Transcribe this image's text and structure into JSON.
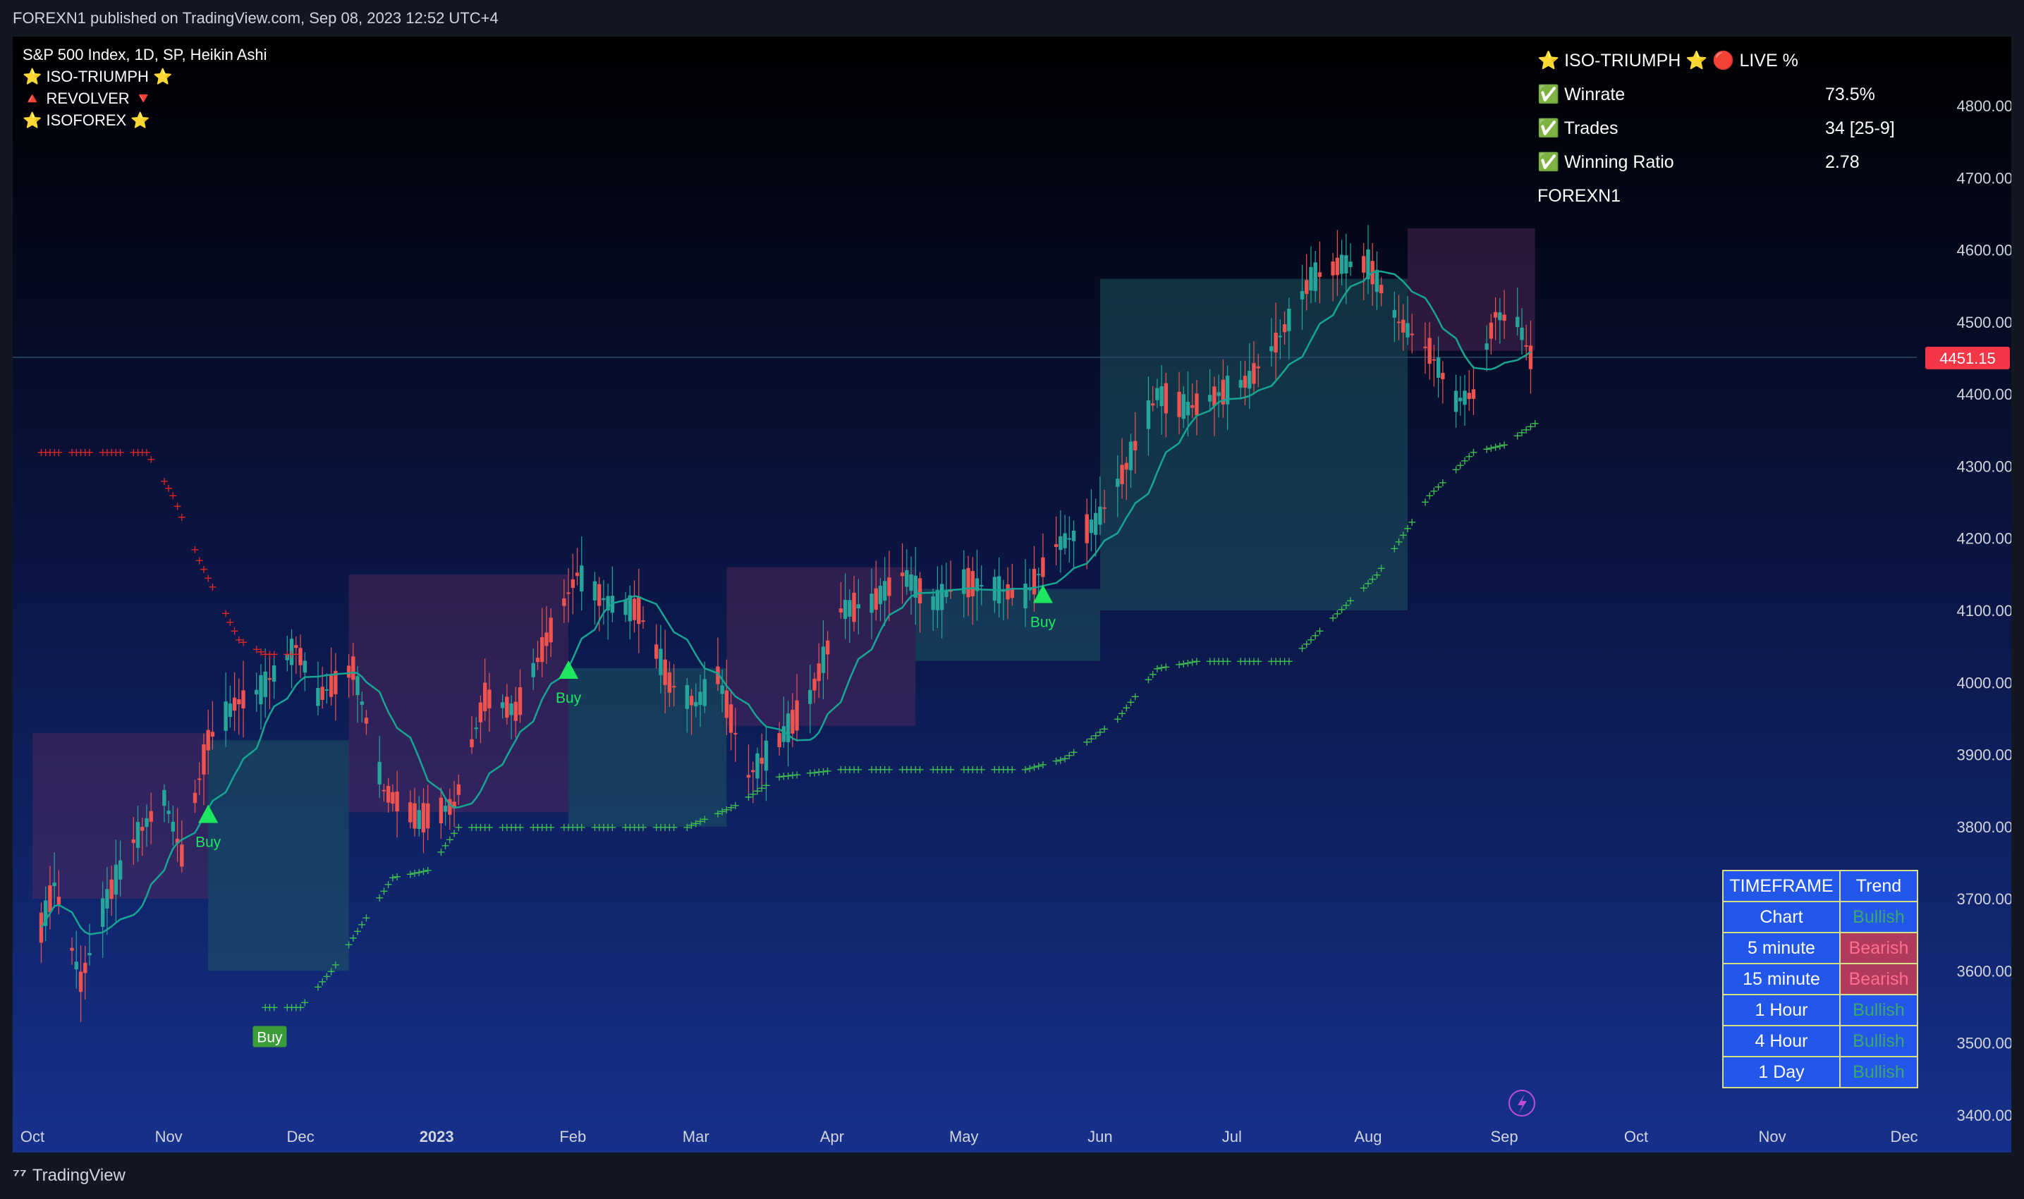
{
  "header": {
    "published_text": "FOREXN1 published on TradingView.com, Sep 08, 2023 12:52 UTC+4"
  },
  "legend": {
    "symbol": "S&P 500 Index, 1D, SP, Heikin Ashi",
    "indicators": [
      "⭐ ISO-TRIUMPH ⭐",
      "🔺 REVOLVER 🔻",
      "⭐ ISOFOREX ⭐"
    ]
  },
  "stats_panel": {
    "title": "⭐ ISO-TRIUMPH ⭐  🔴 LIVE %",
    "rows": [
      {
        "label": "✅ Winrate",
        "value": "73.5%"
      },
      {
        "label": "✅ Trades",
        "value": "34 [25-9]"
      },
      {
        "label": "✅ Winning Ratio",
        "value": "2.78"
      }
    ],
    "author": "FOREXN1"
  },
  "timeframe_table": {
    "headers": [
      "TIMEFRAME",
      "Trend"
    ],
    "rows": [
      {
        "timeframe": "Chart",
        "trend": "Bullish"
      },
      {
        "timeframe": "5 minute",
        "trend": "Bearish"
      },
      {
        "timeframe": "15 minute",
        "trend": "Bearish"
      },
      {
        "timeframe": "1 Hour",
        "trend": "Bullish"
      },
      {
        "timeframe": "4 Hour",
        "trend": "Bullish"
      },
      {
        "timeframe": "1 Day",
        "trend": "Bullish"
      }
    ]
  },
  "footer": {
    "brand": "TradingView"
  },
  "colors": {
    "bull": "#26a69a",
    "bear": "#ef5350",
    "last_price_bg": "#f23645",
    "buy_signal": "#1de760"
  },
  "chart_data": {
    "type": "candlestick",
    "title": "",
    "last_price_label": "4451.15",
    "ylim": [
      3380,
      4880
    ],
    "y_ticks": [
      4800,
      4700,
      4600,
      4500,
      4400,
      4300,
      4200,
      4100,
      4000,
      3900,
      3800,
      3700,
      3600,
      3500,
      3400
    ],
    "y_tick_labels": [
      "4800.00",
      "4700.00",
      "4600.00",
      "4500.00",
      "4400.00",
      "4300.00",
      "4200.00",
      "4100.00",
      "4000.00",
      "3900.00",
      "3800.00",
      "3700.00",
      "3600.00",
      "3500.00",
      "3400.00"
    ],
    "x_labels": [
      {
        "label": "Oct",
        "date": "2022-10-01",
        "bold": false
      },
      {
        "label": "Nov",
        "date": "2022-11-01",
        "bold": false
      },
      {
        "label": "Dec",
        "date": "2022-12-01",
        "bold": false
      },
      {
        "label": "2023",
        "date": "2023-01-01",
        "bold": true
      },
      {
        "label": "Feb",
        "date": "2023-02-01",
        "bold": false
      },
      {
        "label": "Mar",
        "date": "2023-03-01",
        "bold": false
      },
      {
        "label": "Apr",
        "date": "2023-04-01",
        "bold": false
      },
      {
        "label": "May",
        "date": "2023-05-01",
        "bold": false
      },
      {
        "label": "Jun",
        "date": "2023-06-01",
        "bold": false
      },
      {
        "label": "Jul",
        "date": "2023-07-01",
        "bold": false
      },
      {
        "label": "Aug",
        "date": "2023-08-01",
        "bold": false
      },
      {
        "label": "Sep",
        "date": "2023-09-01",
        "bold": false
      },
      {
        "label": "Oct",
        "date": "2023-10-01",
        "bold": false
      },
      {
        "label": "Nov",
        "date": "2023-11-01",
        "bold": false
      },
      {
        "label": "Dec",
        "date": "2023-12-01",
        "bold": false
      }
    ],
    "price_path": [
      [
        "2022-10-01",
        3620
      ],
      [
        "2022-10-06",
        3720
      ],
      [
        "2022-10-12",
        3585
      ],
      [
        "2022-10-18",
        3700
      ],
      [
        "2022-10-24",
        3780
      ],
      [
        "2022-10-31",
        3840
      ],
      [
        "2022-11-04",
        3760
      ],
      [
        "2022-11-10",
        3920
      ],
      [
        "2022-11-16",
        3970
      ],
      [
        "2022-11-22",
        3990
      ],
      [
        "2022-11-30",
        4050
      ],
      [
        "2022-12-05",
        3980
      ],
      [
        "2022-12-13",
        4020
      ],
      [
        "2022-12-20",
        3850
      ],
      [
        "2022-12-28",
        3810
      ],
      [
        "2023-01-05",
        3830
      ],
      [
        "2023-01-12",
        3980
      ],
      [
        "2023-01-19",
        3960
      ],
      [
        "2023-01-26",
        4060
      ],
      [
        "2023-02-02",
        4150
      ],
      [
        "2023-02-09",
        4110
      ],
      [
        "2023-02-16",
        4100
      ],
      [
        "2023-02-23",
        4000
      ],
      [
        "2023-03-01",
        3970
      ],
      [
        "2023-03-06",
        4010
      ],
      [
        "2023-03-13",
        3870
      ],
      [
        "2023-03-20",
        3920
      ],
      [
        "2023-03-27",
        3980
      ],
      [
        "2023-04-03",
        4100
      ],
      [
        "2023-04-10",
        4110
      ],
      [
        "2023-04-17",
        4150
      ],
      [
        "2023-04-24",
        4110
      ],
      [
        "2023-05-01",
        4140
      ],
      [
        "2023-05-08",
        4130
      ],
      [
        "2023-05-15",
        4120
      ],
      [
        "2023-05-22",
        4190
      ],
      [
        "2023-05-31",
        4220
      ],
      [
        "2023-06-07",
        4300
      ],
      [
        "2023-06-14",
        4400
      ],
      [
        "2023-06-21",
        4380
      ],
      [
        "2023-06-28",
        4400
      ],
      [
        "2023-07-05",
        4420
      ],
      [
        "2023-07-12",
        4480
      ],
      [
        "2023-07-19",
        4560
      ],
      [
        "2023-07-26",
        4580
      ],
      [
        "2023-08-01",
        4580
      ],
      [
        "2023-08-08",
        4500
      ],
      [
        "2023-08-15",
        4460
      ],
      [
        "2023-08-21",
        4390
      ],
      [
        "2023-08-25",
        4400
      ],
      [
        "2023-08-30",
        4510
      ],
      [
        "2023-09-04",
        4500
      ],
      [
        "2023-09-07",
        4451
      ]
    ],
    "support_trail": [
      [
        "2022-11-23",
        3550
      ],
      [
        "2022-12-01",
        3550
      ],
      [
        "2022-12-08",
        3600
      ],
      [
        "2022-12-22",
        3730
      ],
      [
        "2022-12-30",
        3740
      ],
      [
        "2023-01-06",
        3800
      ],
      [
        "2023-02-27",
        3800
      ],
      [
        "2023-03-10",
        3830
      ],
      [
        "2023-03-20",
        3870
      ],
      [
        "2023-04-03",
        3880
      ],
      [
        "2023-05-15",
        3880
      ],
      [
        "2023-05-24",
        3895
      ],
      [
        "2023-06-05",
        3950
      ],
      [
        "2023-06-14",
        4020
      ],
      [
        "2023-06-23",
        4030
      ],
      [
        "2023-07-14",
        4030
      ],
      [
        "2023-08-03",
        4150
      ],
      [
        "2023-08-15",
        4260
      ],
      [
        "2023-08-25",
        4320
      ],
      [
        "2023-09-01",
        4330
      ],
      [
        "2023-09-08",
        4360
      ]
    ],
    "resistance_trail": [
      [
        "2022-10-01",
        4320
      ],
      [
        "2022-10-27",
        4320
      ],
      [
        "2022-11-02",
        4260
      ],
      [
        "2022-11-08",
        4170
      ],
      [
        "2022-11-17",
        4060
      ],
      [
        "2022-11-23",
        4040
      ],
      [
        "2022-11-30",
        4040
      ]
    ],
    "buy_signals": [
      {
        "date": "2022-11-10",
        "price": 3815,
        "label": "Buy"
      },
      {
        "date": "2023-01-31",
        "price": 4015,
        "label": "Buy"
      },
      {
        "date": "2023-05-19",
        "price": 4120,
        "label": "Buy"
      }
    ],
    "buy_tag": {
      "date": "2022-11-24",
      "price": 3510,
      "label": "Buy"
    }
  }
}
